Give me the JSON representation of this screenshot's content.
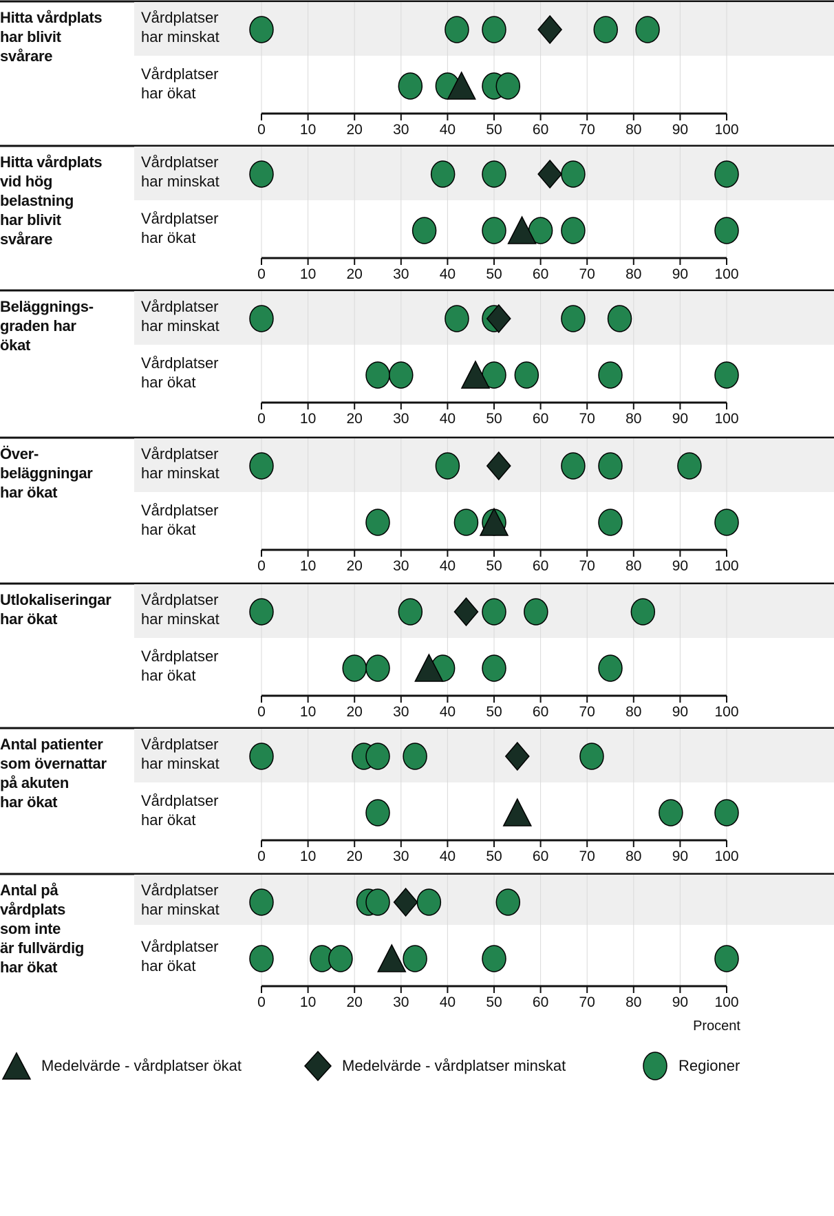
{
  "chart_data": {
    "type": "scatter",
    "title": "",
    "xlabel": "Procent",
    "ylabel": "",
    "xlim": [
      0,
      100
    ],
    "xticks": [
      0,
      10,
      20,
      30,
      40,
      50,
      60,
      70,
      80,
      90,
      100
    ],
    "grid": true,
    "legend_position": "bottom",
    "legend": [
      {
        "symbol": "triangle",
        "label": "Medelvärde - vårdplatser ökat",
        "color": "#172e24"
      },
      {
        "symbol": "diamond",
        "label": "Medelvärde - vårdplatser minskat",
        "color": "#172e24"
      },
      {
        "symbol": "circle",
        "label": "Regioner",
        "color": "#22844e"
      }
    ],
    "row_labels": {
      "minskat": "Vårdplatser\nhar minskat",
      "okat": "Vårdplatser\nhar ökat"
    },
    "panels": [
      {
        "category": "Hitta vårdplats\nhar blivit\nsvårare",
        "minskat": {
          "regions": [
            0,
            42,
            50,
            74,
            83
          ],
          "mean": 62
        },
        "okat": {
          "regions": [
            32,
            40,
            50,
            53
          ],
          "mean": 43
        }
      },
      {
        "category": "Hitta vårdplats\nvid hög\nbelastning\nhar blivit\nsvårare",
        "minskat": {
          "regions": [
            0,
            39,
            50,
            67,
            100
          ],
          "mean": 62
        },
        "okat": {
          "regions": [
            35,
            50,
            60,
            67,
            100
          ],
          "mean": 56
        }
      },
      {
        "category": "Beläggnings-\ngraden har\nökat",
        "minskat": {
          "regions": [
            0,
            42,
            50,
            67,
            77
          ],
          "mean": 51
        },
        "okat": {
          "regions": [
            25,
            30,
            50,
            57,
            75,
            100
          ],
          "mean": 46
        }
      },
      {
        "category": "Över-\nbeläggningar\nhar ökat",
        "minskat": {
          "regions": [
            0,
            40,
            67,
            75,
            92
          ],
          "mean": 51
        },
        "okat": {
          "regions": [
            25,
            44,
            50,
            75,
            100
          ],
          "mean": 50
        }
      },
      {
        "category": "Utlokaliseringar\nhar ökat",
        "minskat": {
          "regions": [
            0,
            32,
            50,
            59,
            82
          ],
          "mean": 44
        },
        "okat": {
          "regions": [
            20,
            25,
            39,
            50,
            75
          ],
          "mean": 36
        }
      },
      {
        "category": "Antal patienter\nsom övernattar\npå akuten\nhar ökat",
        "minskat": {
          "regions": [
            0,
            22,
            25,
            33,
            71
          ],
          "mean": 55
        },
        "okat": {
          "regions": [
            25,
            88,
            100
          ],
          "mean": 55
        }
      },
      {
        "category": "Antal på\nvårdplats\nsom inte\när fullvärdig\nhar ökat",
        "minskat": {
          "regions": [
            0,
            23,
            25,
            36,
            53
          ],
          "mean": 31
        },
        "okat": {
          "regions": [
            0,
            13,
            17,
            33,
            50,
            100
          ],
          "mean": 28
        }
      }
    ]
  },
  "colors": {
    "region": "#22844e",
    "mean": "#172e24",
    "band": "#efefef",
    "grid": "#d9d9d9",
    "axis": "#111111"
  }
}
